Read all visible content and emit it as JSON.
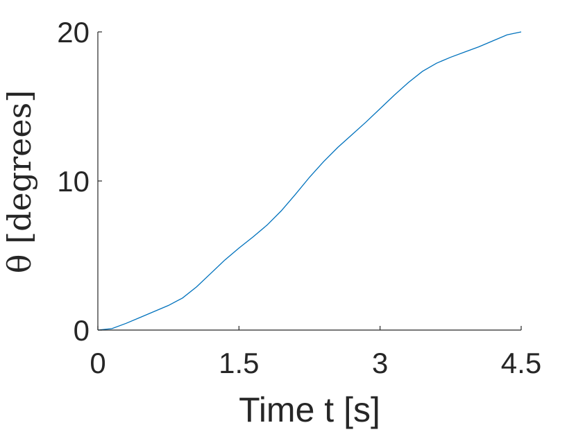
{
  "chart_data": {
    "type": "line",
    "title": "",
    "xlabel": "Time t [s]",
    "ylabel": "θ [degrees]",
    "xlim": [
      0,
      4.5
    ],
    "ylim": [
      0,
      20
    ],
    "xticks": [
      0,
      1.5,
      3,
      4.5
    ],
    "xtick_labels": [
      "0",
      "1.5",
      "3",
      "4.5"
    ],
    "yticks": [
      0,
      10,
      20
    ],
    "ytick_labels": [
      "0",
      "10",
      "20"
    ],
    "grid": false,
    "legend": "none",
    "series": [
      {
        "color": "#0072bd",
        "x": [
          0.0,
          0.15,
          0.3,
          0.45,
          0.6,
          0.75,
          0.9,
          1.05,
          1.2,
          1.35,
          1.5,
          1.65,
          1.8,
          1.95,
          2.1,
          2.25,
          2.4,
          2.55,
          2.7,
          2.85,
          3.0,
          3.15,
          3.3,
          3.45,
          3.6,
          3.75,
          3.9,
          4.05,
          4.2,
          4.35,
          4.5
        ],
        "y": [
          0.0,
          0.1,
          0.45,
          0.85,
          1.25,
          1.65,
          2.15,
          2.9,
          3.8,
          4.7,
          5.5,
          6.25,
          7.05,
          8.0,
          9.1,
          10.25,
          11.3,
          12.25,
          13.1,
          13.95,
          14.85,
          15.75,
          16.6,
          17.35,
          17.9,
          18.3,
          18.65,
          19.0,
          19.4,
          19.8,
          20.0
        ]
      }
    ]
  }
}
